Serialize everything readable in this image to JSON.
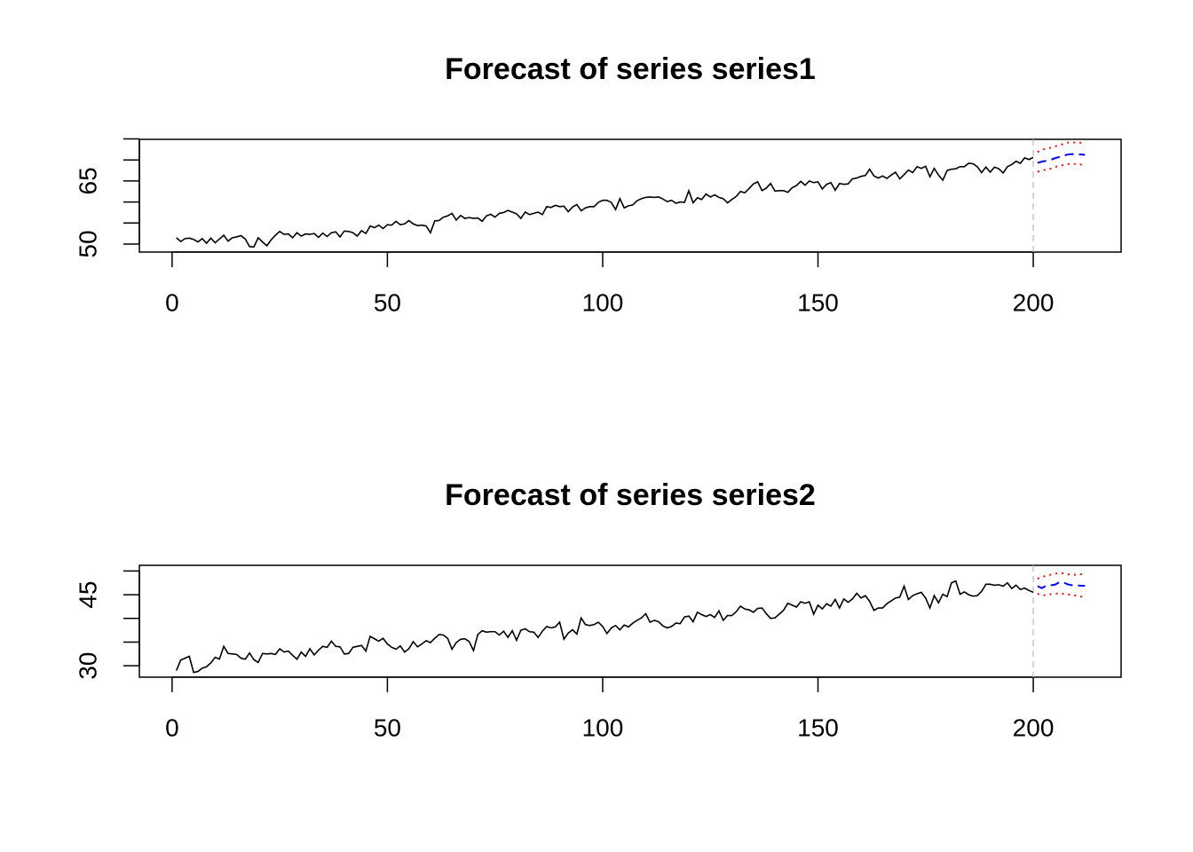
{
  "chart_data": [
    {
      "type": "line",
      "title": "Forecast of series series1",
      "xlim": [
        -7.6,
        220.4
      ],
      "xticks": [
        0,
        50,
        100,
        150,
        200
      ],
      "ylim": [
        48.1,
        74.9
      ],
      "yticks": [
        50,
        65
      ],
      "yticks_minor": [
        55,
        60,
        70,
        75
      ],
      "forecast_start": 200,
      "forecast_start_color": "#bebebe",
      "series": [
        {
          "color": "#000000",
          "dash": "solid",
          "x": [
            1,
            2,
            3,
            4,
            5,
            6,
            7,
            8,
            9,
            10,
            11,
            12,
            13,
            14,
            15,
            16,
            17,
            18,
            19,
            20,
            21,
            22,
            23,
            24,
            25,
            26,
            27,
            28,
            29,
            30,
            31,
            32,
            33,
            34,
            35,
            36,
            37,
            38,
            39,
            40,
            41,
            42,
            43,
            44,
            45,
            46,
            47,
            48,
            49,
            50,
            51,
            52,
            53,
            54,
            55,
            56,
            57,
            58,
            59,
            60,
            61,
            62,
            63,
            64,
            65,
            66,
            67,
            68,
            69,
            70,
            71,
            72,
            73,
            74,
            75,
            76,
            77,
            78,
            79,
            80,
            81,
            82,
            83,
            84,
            85,
            86,
            87,
            88,
            89,
            90,
            91,
            92,
            93,
            94,
            95,
            96,
            97,
            98,
            99,
            100,
            101,
            102,
            103,
            104,
            105,
            106,
            107,
            108,
            109,
            110,
            111,
            112,
            113,
            114,
            115,
            116,
            117,
            118,
            119,
            120,
            121,
            122,
            123,
            124,
            125,
            126,
            127,
            128,
            129,
            130,
            131,
            132,
            133,
            134,
            135,
            136,
            137,
            138,
            139,
            140,
            141,
            142,
            143,
            144,
            145,
            146,
            147,
            148,
            149,
            150,
            151,
            152,
            153,
            154,
            155,
            156,
            157,
            158,
            159,
            160,
            161,
            162,
            163,
            164,
            165,
            166,
            167,
            168,
            169,
            170,
            171,
            172,
            173,
            174,
            175,
            176,
            177,
            178,
            179,
            180,
            181,
            182,
            183,
            184,
            185,
            186,
            187,
            188,
            189,
            190,
            191,
            192,
            193,
            194,
            195,
            196,
            197,
            198,
            199,
            200
          ],
          "values": [
            51.5,
            50.6,
            51.3,
            51.4,
            51.1,
            50.5,
            51.3,
            50.2,
            51.4,
            50.3,
            51.2,
            52.1,
            50.7,
            51.5,
            51.7,
            52.0,
            51.2,
            49.4,
            49.3,
            51.5,
            50.5,
            49.6,
            51.0,
            52.1,
            53.0,
            52.3,
            52.4,
            51.5,
            52.7,
            51.9,
            52.4,
            52.3,
            52.5,
            51.6,
            52.6,
            51.8,
            52.7,
            52.9,
            51.7,
            53.1,
            53.0,
            52.7,
            51.9,
            53.2,
            52.5,
            54.3,
            53.9,
            54.5,
            53.7,
            54.6,
            54.5,
            55.4,
            54.6,
            54.8,
            55.6,
            54.8,
            54.4,
            54.5,
            54.3,
            52.7,
            55.5,
            55.6,
            56.4,
            56.7,
            57.3,
            55.7,
            56.8,
            56.1,
            56.3,
            56.1,
            56.2,
            55.4,
            56.7,
            57.1,
            56.4,
            57.3,
            57.5,
            58.0,
            57.6,
            57.2,
            56.1,
            57.6,
            57.0,
            57.3,
            57.6,
            57.0,
            58.9,
            58.7,
            59.2,
            58.9,
            59.0,
            57.7,
            58.8,
            59.4,
            57.9,
            58.6,
            58.9,
            58.9,
            59.9,
            60.4,
            60.4,
            59.9,
            58.2,
            60.8,
            58.6,
            59.1,
            59.3,
            60.3,
            60.8,
            61.1,
            61.2,
            61.1,
            61.2,
            60.7,
            60.1,
            60.4,
            59.7,
            60.0,
            59.9,
            62.7,
            59.8,
            61.0,
            60.6,
            61.9,
            61.2,
            61.7,
            61.1,
            60.8,
            59.8,
            60.6,
            61.3,
            62.5,
            62.2,
            63.2,
            64.3,
            64.8,
            62.7,
            63.3,
            64.4,
            62.6,
            62.7,
            62.7,
            62.3,
            63.4,
            63.9,
            64.9,
            64.0,
            65.0,
            64.6,
            64.8,
            63.1,
            64.2,
            64.6,
            62.8,
            64.4,
            64.2,
            64.3,
            65.5,
            65.7,
            66.1,
            66.3,
            67.8,
            66.2,
            65.7,
            66.2,
            65.6,
            66.4,
            67.1,
            65.5,
            66.5,
            67.6,
            67.0,
            68.4,
            68.0,
            68.5,
            66.0,
            68.0,
            66.4,
            65.2,
            67.5,
            67.8,
            67.9,
            68.4,
            68.4,
            69.2,
            69.1,
            68.4,
            67.0,
            68.3,
            67.1,
            68.3,
            67.9,
            66.9,
            68.4,
            68.9,
            69.7,
            69.2,
            70.5,
            70.1,
            70.6
          ]
        },
        {
          "color": "#0000ff",
          "dash": "dashed",
          "x": [
            201,
            202,
            203,
            204,
            205,
            206,
            207,
            208,
            209,
            210,
            211,
            212
          ],
          "values": [
            69.3,
            69.6,
            69.8,
            70.0,
            70.4,
            70.7,
            71.0,
            71.3,
            71.4,
            71.3,
            71.3,
            71.2
          ]
        },
        {
          "color": "#ff0000",
          "dash": "dotted",
          "x": [
            201,
            202,
            203,
            204,
            205,
            206,
            207,
            208,
            209,
            210,
            211,
            212
          ],
          "values": [
            71.9,
            72.4,
            72.7,
            72.9,
            73.2,
            73.5,
            73.8,
            74.1,
            74.2,
            74.1,
            74.1,
            74.0
          ]
        },
        {
          "color": "#ff0000",
          "dash": "dotted",
          "x": [
            201,
            202,
            203,
            204,
            205,
            206,
            207,
            208,
            209,
            210,
            211,
            212
          ],
          "values": [
            67.2,
            67.5,
            67.7,
            67.9,
            68.3,
            68.6,
            68.8,
            69.0,
            69.1,
            69.0,
            68.9,
            68.8
          ]
        }
      ]
    },
    {
      "type": "line",
      "title": "Forecast of series series2",
      "xlim": [
        -7.6,
        220.4
      ],
      "xticks": [
        0,
        50,
        100,
        150,
        200
      ],
      "ylim": [
        27.6,
        51.2
      ],
      "yticks": [
        30,
        45
      ],
      "yticks_minor": [
        35,
        40,
        50
      ],
      "forecast_start": 200,
      "forecast_start_color": "#bebebe",
      "series": [
        {
          "color": "#000000",
          "dash": "solid",
          "x": [
            1,
            2,
            3,
            4,
            5,
            6,
            7,
            8,
            9,
            10,
            11,
            12,
            13,
            14,
            15,
            16,
            17,
            18,
            19,
            20,
            21,
            22,
            23,
            24,
            25,
            26,
            27,
            28,
            29,
            30,
            31,
            32,
            33,
            34,
            35,
            36,
            37,
            38,
            39,
            40,
            41,
            42,
            43,
            44,
            45,
            46,
            47,
            48,
            49,
            50,
            51,
            52,
            53,
            54,
            55,
            56,
            57,
            58,
            59,
            60,
            61,
            62,
            63,
            64,
            65,
            66,
            67,
            68,
            69,
            70,
            71,
            72,
            73,
            74,
            75,
            76,
            77,
            78,
            79,
            80,
            81,
            82,
            83,
            84,
            85,
            86,
            87,
            88,
            89,
            90,
            91,
            92,
            93,
            94,
            95,
            96,
            97,
            98,
            99,
            100,
            101,
            102,
            103,
            104,
            105,
            106,
            107,
            108,
            109,
            110,
            111,
            112,
            113,
            114,
            115,
            116,
            117,
            118,
            119,
            120,
            121,
            122,
            123,
            124,
            125,
            126,
            127,
            128,
            129,
            130,
            131,
            132,
            133,
            134,
            135,
            136,
            137,
            138,
            139,
            140,
            141,
            142,
            143,
            144,
            145,
            146,
            147,
            148,
            149,
            150,
            151,
            152,
            153,
            154,
            155,
            156,
            157,
            158,
            159,
            160,
            161,
            162,
            163,
            164,
            165,
            166,
            167,
            168,
            169,
            170,
            171,
            172,
            173,
            174,
            175,
            176,
            177,
            178,
            179,
            180,
            181,
            182,
            183,
            184,
            185,
            186,
            187,
            188,
            189,
            190,
            191,
            192,
            193,
            194,
            195,
            196,
            197,
            198,
            199,
            200
          ],
          "values": [
            29.0,
            31.2,
            31.6,
            32.0,
            28.6,
            28.8,
            29.5,
            29.8,
            30.6,
            31.8,
            31.4,
            34.1,
            32.6,
            32.5,
            32.4,
            31.6,
            31.4,
            32.7,
            31.3,
            30.7,
            32.6,
            32.5,
            32.6,
            32.4,
            33.6,
            32.9,
            33.1,
            32.2,
            31.4,
            32.9,
            32.0,
            33.6,
            32.3,
            33.3,
            34.1,
            33.9,
            35.2,
            34.1,
            34.0,
            32.5,
            32.6,
            33.9,
            34.1,
            34.3,
            33.1,
            36.2,
            35.7,
            35.2,
            35.8,
            34.6,
            33.9,
            33.5,
            34.2,
            32.9,
            33.6,
            35.1,
            34.0,
            34.6,
            35.3,
            34.9,
            35.8,
            36.6,
            36.5,
            35.8,
            33.5,
            34.9,
            35.6,
            35.7,
            35.1,
            33.2,
            36.6,
            37.4,
            37.1,
            37.2,
            37.2,
            36.5,
            37.3,
            36.0,
            37.4,
            35.4,
            37.5,
            37.8,
            37.2,
            37.1,
            36.0,
            37.3,
            38.3,
            38.0,
            38.2,
            39.2,
            35.6,
            36.9,
            37.6,
            36.7,
            40.1,
            38.7,
            38.5,
            38.7,
            39.2,
            38.3,
            36.8,
            38.0,
            38.5,
            37.6,
            38.6,
            38.2,
            39.0,
            39.6,
            40.1,
            41.0,
            39.2,
            39.6,
            39.3,
            38.4,
            38.0,
            38.3,
            39.0,
            38.9,
            40.3,
            40.5,
            39.3,
            41.3,
            40.8,
            40.4,
            40.8,
            40.2,
            41.6,
            39.6,
            40.6,
            40.6,
            41.4,
            42.6,
            42.0,
            41.8,
            41.3,
            42.1,
            42.2,
            41.0,
            40.0,
            40.1,
            40.9,
            41.7,
            43.2,
            42.8,
            42.4,
            43.5,
            43.2,
            43.5,
            40.9,
            42.8,
            42.0,
            43.1,
            42.6,
            44.0,
            42.2,
            44.1,
            43.4,
            44.1,
            45.3,
            44.3,
            44.8,
            43.6,
            41.7,
            42.2,
            42.2,
            43.1,
            43.7,
            44.3,
            44.5,
            46.8,
            44.0,
            44.8,
            45.2,
            45.5,
            44.3,
            42.2,
            44.8,
            43.3,
            45.1,
            44.6,
            47.5,
            47.9,
            45.1,
            45.6,
            45.0,
            44.7,
            44.8,
            45.7,
            47.2,
            47.2,
            47.0,
            47.1,
            46.8,
            47.5,
            46.3,
            47.0,
            46.1,
            46.4,
            45.9,
            45.5
          ]
        },
        {
          "color": "#0000ff",
          "dash": "dashed",
          "x": [
            201,
            202,
            203,
            204,
            205,
            206,
            207,
            208,
            209,
            210,
            211,
            212
          ],
          "values": [
            46.8,
            46.4,
            46.9,
            47.0,
            47.1,
            47.6,
            47.6,
            47.2,
            47.0,
            47.0,
            46.9,
            46.9
          ]
        },
        {
          "color": "#ff0000",
          "dash": "dotted",
          "x": [
            201,
            202,
            203,
            204,
            205,
            206,
            207,
            208,
            209,
            210,
            211,
            212
          ],
          "values": [
            48.4,
            48.7,
            49.0,
            49.2,
            49.4,
            49.6,
            49.5,
            49.3,
            49.2,
            49.2,
            49.3,
            49.4
          ]
        },
        {
          "color": "#ff0000",
          "dash": "dotted",
          "x": [
            201,
            202,
            203,
            204,
            205,
            206,
            207,
            208,
            209,
            210,
            211,
            212
          ],
          "values": [
            45.2,
            44.9,
            44.9,
            45.1,
            45.2,
            45.3,
            45.2,
            45.1,
            44.9,
            44.8,
            44.6,
            44.6
          ]
        }
      ]
    }
  ]
}
